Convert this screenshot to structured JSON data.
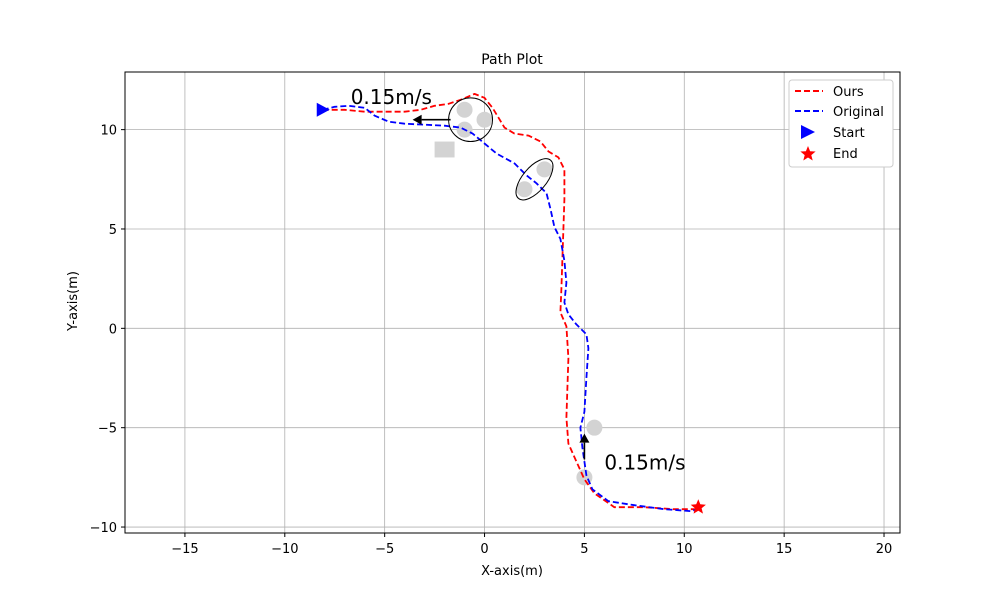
{
  "chart_data": {
    "type": "line",
    "title": "Path Plot",
    "xlabel": "X-axis(m)",
    "ylabel": "Y-axis(m)",
    "xlim": [
      -18,
      20.8
    ],
    "ylim": [
      -10.3,
      12.9
    ],
    "xticks": [
      -15,
      -10,
      -5,
      0,
      5,
      10,
      15,
      20
    ],
    "yticks": [
      -10,
      -5,
      0,
      5,
      10
    ],
    "xtick_labels": [
      "−15",
      "−10",
      "−5",
      "0",
      "5",
      "10",
      "15",
      "20"
    ],
    "ytick_labels": [
      "−10",
      "−5",
      "0",
      "5",
      "10"
    ],
    "grid": true,
    "legend_position": "top-right",
    "series": [
      {
        "name": "Ours",
        "color": "#ff0000",
        "points": [
          [
            -8.1,
            11.0
          ],
          [
            -7.0,
            11.0
          ],
          [
            -6.0,
            10.9
          ],
          [
            -5.0,
            10.9
          ],
          [
            -4.0,
            10.9
          ],
          [
            -3.2,
            11.0
          ],
          [
            -2.5,
            11.2
          ],
          [
            -1.8,
            11.3
          ],
          [
            -1.2,
            11.5
          ],
          [
            -0.5,
            11.8
          ],
          [
            0.0,
            11.6
          ],
          [
            0.4,
            11.1
          ],
          [
            0.7,
            10.6
          ],
          [
            1.0,
            10.1
          ],
          [
            1.5,
            9.8
          ],
          [
            2.2,
            9.7
          ],
          [
            2.8,
            9.4
          ],
          [
            3.2,
            8.9
          ],
          [
            3.7,
            8.6
          ],
          [
            4.0,
            8.0
          ],
          [
            4.0,
            6.5
          ],
          [
            3.95,
            5.0
          ],
          [
            3.9,
            3.5
          ],
          [
            3.85,
            2.0
          ],
          [
            3.8,
            0.8
          ],
          [
            4.1,
            0.1
          ],
          [
            4.2,
            -1.5
          ],
          [
            4.15,
            -3.0
          ],
          [
            4.1,
            -4.5
          ],
          [
            4.2,
            -5.8
          ],
          [
            4.6,
            -6.7
          ],
          [
            5.0,
            -7.6
          ],
          [
            5.5,
            -8.3
          ],
          [
            6.5,
            -9.0
          ],
          [
            8.0,
            -9.0
          ],
          [
            9.5,
            -9.1
          ],
          [
            10.7,
            -9.1
          ]
        ]
      },
      {
        "name": "Original",
        "color": "#0000ff",
        "points": [
          [
            -8.1,
            11.0
          ],
          [
            -7.5,
            11.15
          ],
          [
            -6.8,
            11.2
          ],
          [
            -6.0,
            11.1
          ],
          [
            -5.5,
            10.7
          ],
          [
            -4.8,
            10.4
          ],
          [
            -4.0,
            10.3
          ],
          [
            -3.0,
            10.25
          ],
          [
            -2.0,
            10.2
          ],
          [
            -1.2,
            10.1
          ],
          [
            -0.6,
            9.8
          ],
          [
            0.0,
            9.3
          ],
          [
            0.6,
            8.8
          ],
          [
            1.5,
            8.3
          ],
          [
            2.1,
            7.7
          ],
          [
            2.6,
            7.3
          ],
          [
            3.1,
            6.8
          ],
          [
            3.3,
            6.0
          ],
          [
            3.5,
            5.1
          ],
          [
            3.8,
            4.5
          ],
          [
            4.0,
            3.4
          ],
          [
            4.1,
            2.3
          ],
          [
            4.0,
            1.3
          ],
          [
            4.2,
            0.7
          ],
          [
            4.6,
            0.2
          ],
          [
            5.1,
            -0.3
          ],
          [
            5.2,
            -1.0
          ],
          [
            5.1,
            -2.5
          ],
          [
            5.0,
            -4.2
          ],
          [
            4.8,
            -5.0
          ],
          [
            4.9,
            -6.0
          ],
          [
            5.1,
            -7.4
          ],
          [
            5.4,
            -8.1
          ],
          [
            6.2,
            -8.7
          ],
          [
            7.5,
            -8.9
          ],
          [
            9.0,
            -9.1
          ],
          [
            10.3,
            -9.2
          ],
          [
            10.7,
            -9.1
          ]
        ]
      }
    ],
    "start": {
      "name": "Start",
      "x": -8.1,
      "y": 11.0,
      "color": "#0000ff",
      "marker": "triangle-right"
    },
    "end": {
      "name": "End",
      "x": 10.7,
      "y": -9.0,
      "color": "#ff0000",
      "marker": "star"
    },
    "obstacles": {
      "color": "#d3d3d3",
      "circles": [
        {
          "x": -1.0,
          "y": 11.0
        },
        {
          "x": 0.0,
          "y": 10.5
        },
        {
          "x": -1.0,
          "y": 10.0
        },
        {
          "x": 2.0,
          "y": 7.0
        },
        {
          "x": 3.0,
          "y": 8.0
        },
        {
          "x": 5.5,
          "y": -5.0
        },
        {
          "x": 5.0,
          "y": -7.5
        }
      ],
      "squares": [
        {
          "x": -2.0,
          "y": 9.0,
          "side": 1.0
        }
      ]
    },
    "ellipses": [
      {
        "cx": -0.7,
        "cy": 10.5,
        "rx": 1.1,
        "ry": 1.1,
        "angle": 0
      },
      {
        "cx": 2.5,
        "cy": 7.5,
        "rx": 1.25,
        "ry": 0.6,
        "angle": 50
      }
    ],
    "arrows": [
      {
        "x": -1.7,
        "y": 10.5,
        "dx": -1.9,
        "dy": 0.0
      },
      {
        "x": 5.0,
        "y": -6.6,
        "dx": 0.0,
        "dy": 1.3
      }
    ],
    "annotations": [
      {
        "text": "0.15m/s",
        "x": -6.7,
        "y": 11.3
      },
      {
        "text": "0.15m/s",
        "x": 6.0,
        "y": -7.1
      }
    ]
  }
}
